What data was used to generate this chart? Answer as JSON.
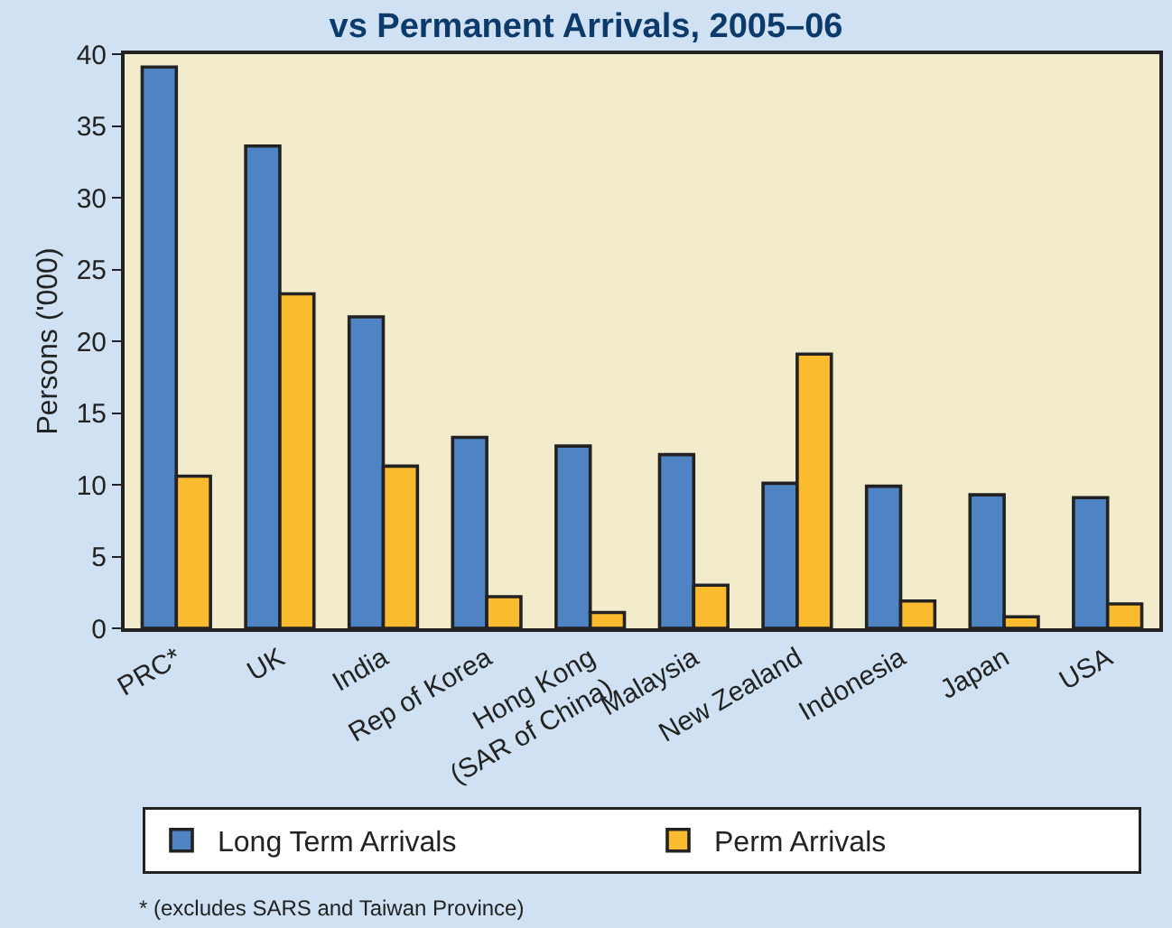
{
  "chart_data": {
    "type": "bar",
    "title": "vs Permanent Arrivals, 2005–06",
    "ylabel": "Persons ('000)",
    "categories": [
      "PRC*",
      "UK",
      "India",
      "Rep of Korea",
      "Hong Kong\n(SAR of China)",
      "Malaysia",
      "New Zealand",
      "Indonesia",
      "Japan",
      "USA"
    ],
    "series": [
      {
        "name": "Long Term Arrivals",
        "color": "#4f84c4",
        "values": [
          39.1,
          33.6,
          21.7,
          13.3,
          12.7,
          12.1,
          10.1,
          9.9,
          9.3,
          9.1
        ]
      },
      {
        "name": "Perm Arrivals",
        "color": "#fbbb2f",
        "values": [
          10.6,
          23.3,
          11.3,
          2.2,
          1.1,
          3.0,
          19.1,
          1.9,
          0.8,
          1.7
        ]
      }
    ],
    "ylim": [
      0,
      40
    ],
    "yticks": [
      0,
      5,
      10,
      15,
      20,
      25,
      30,
      35,
      40
    ],
    "legend": "bottom",
    "grid": false,
    "annotations": [
      "* (excludes SARS and Taiwan Province)"
    ]
  }
}
